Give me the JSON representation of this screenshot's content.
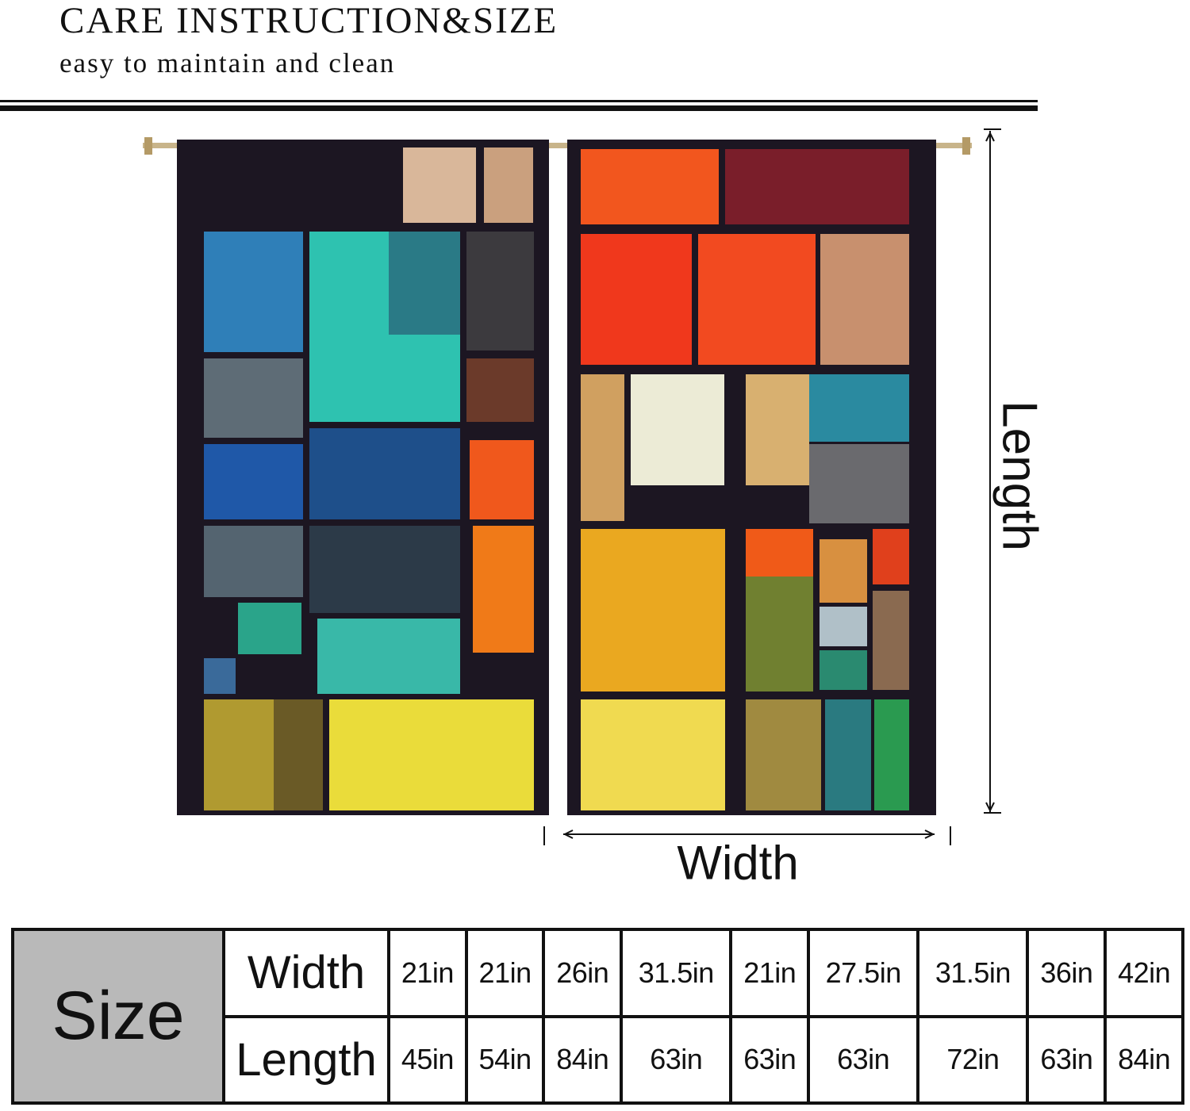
{
  "header": {
    "title": "CARE INSTRUCTION&SIZE",
    "subtitle": "easy to maintain and clean"
  },
  "diagram": {
    "length_label": "Length",
    "width_label": "Width"
  },
  "size_table": {
    "label": "Size",
    "rows": [
      {
        "header": "Width",
        "values": [
          "21in",
          "21in",
          "26in",
          "31.5in",
          "21in",
          "27.5in",
          "31.5in",
          "36in",
          "42in"
        ]
      },
      {
        "header": "Length",
        "values": [
          "45in",
          "54in",
          "84in",
          "63in",
          "63in",
          "63in",
          "72in",
          "63in",
          "84in"
        ]
      }
    ]
  },
  "colors": {
    "text": "#111111",
    "size_cell_bg": "#b9b9b9",
    "curtain_frame": "#1c1622",
    "rod": "#c8b48a"
  }
}
